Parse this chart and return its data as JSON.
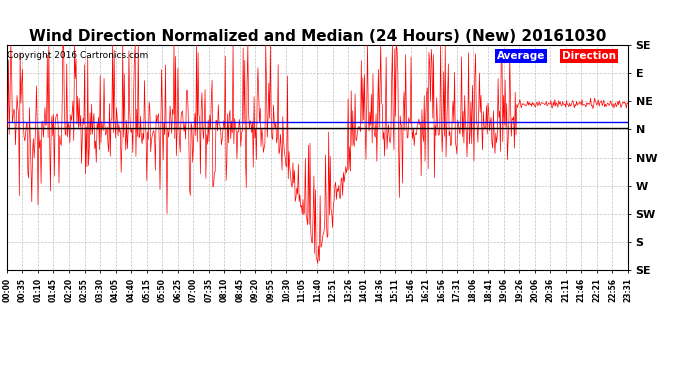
{
  "title": "Wind Direction Normalized and Median (24 Hours) (New) 20161030",
  "copyright": "Copyright 2016 Cartronics.com",
  "ytick_labels": [
    "SE",
    "E",
    "NE",
    "N",
    "NW",
    "W",
    "SW",
    "S",
    "SE"
  ],
  "ytick_values": [
    8,
    7,
    6,
    5,
    4,
    3,
    2,
    1,
    0
  ],
  "ylim": [
    0,
    8
  ],
  "background_color": "#ffffff",
  "grid_color": "#bbbbbb",
  "title_fontsize": 11,
  "median_line_value": 5.05,
  "average_line_value": 5.25,
  "xtick_labels": [
    "00:00",
    "00:35",
    "01:10",
    "01:45",
    "02:20",
    "02:55",
    "03:30",
    "04:05",
    "04:40",
    "05:15",
    "05:50",
    "06:25",
    "07:00",
    "07:35",
    "08:10",
    "08:45",
    "09:20",
    "09:55",
    "10:30",
    "11:05",
    "11:40",
    "12:51",
    "13:26",
    "14:01",
    "14:36",
    "15:11",
    "15:46",
    "16:21",
    "16:56",
    "17:31",
    "18:06",
    "18:41",
    "19:06",
    "19:26",
    "20:06",
    "20:36",
    "21:11",
    "21:46",
    "22:21",
    "22:56",
    "23:31"
  ]
}
